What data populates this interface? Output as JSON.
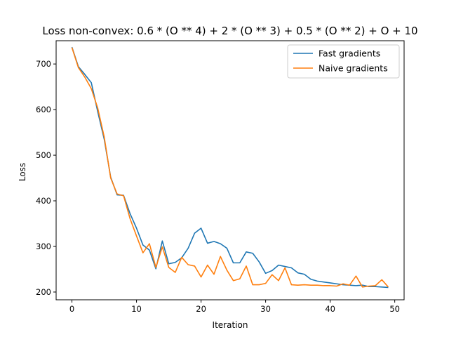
{
  "chart_data": {
    "type": "line",
    "title": "Loss non-convex: 0.6 * (O ** 4) + 2 * (O ** 3) + 0.5 * (O ** 2) + O + 10",
    "xlabel": "Iteration",
    "ylabel": "Loss",
    "xlim": [
      -2.45,
      51.45
    ],
    "ylim": [
      183,
      751
    ],
    "xticks": [
      0,
      10,
      20,
      30,
      40,
      50
    ],
    "yticks": [
      200,
      300,
      400,
      500,
      600,
      700
    ],
    "grid": false,
    "legend_position": "top-right",
    "x": [
      0,
      1,
      2,
      3,
      4,
      5,
      6,
      7,
      8,
      9,
      10,
      11,
      12,
      13,
      14,
      15,
      16,
      17,
      18,
      19,
      20,
      21,
      22,
      23,
      24,
      25,
      26,
      27,
      28,
      29,
      30,
      31,
      32,
      33,
      34,
      35,
      36,
      37,
      38,
      39,
      40,
      41,
      42,
      43,
      44,
      45,
      46,
      47,
      48,
      49
    ],
    "series": [
      {
        "name": "Fast gradients",
        "color": "#1f77b4",
        "values": [
          737,
          694,
          677,
          659,
          595,
          535,
          452,
          413,
          412,
          372,
          340,
          303,
          292,
          251,
          312,
          262,
          265,
          275,
          296,
          329,
          340,
          307,
          311,
          306,
          296,
          264,
          264,
          288,
          285,
          266,
          241,
          247,
          259,
          256,
          253,
          242,
          239,
          228,
          224,
          222,
          220,
          218,
          216,
          215,
          214,
          215,
          212,
          212,
          211,
          210
        ]
      },
      {
        "name": "Naive gradients",
        "color": "#ff7f0e",
        "values": [
          736,
          692,
          671,
          646,
          603,
          540,
          450,
          415,
          411,
          361,
          323,
          286,
          306,
          254,
          299,
          254,
          243,
          276,
          260,
          257,
          233,
          259,
          239,
          278,
          248,
          225,
          229,
          257,
          216,
          216,
          219,
          238,
          225,
          253,
          216,
          215,
          216,
          215,
          215,
          214,
          214,
          213,
          218,
          215,
          235,
          211,
          213,
          214,
          227,
          211
        ]
      }
    ]
  }
}
